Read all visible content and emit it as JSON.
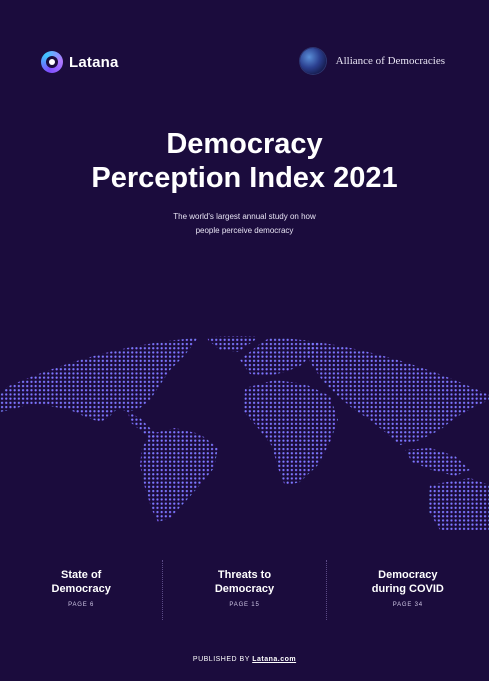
{
  "brands": {
    "latana": {
      "name": "Latana",
      "icon": "latana-logo-icon"
    },
    "alliance": {
      "name": "Alliance of Democracies",
      "icon": "alliance-emblem-icon"
    }
  },
  "cover": {
    "title_line1": "Democracy",
    "title_line2": "Perception Index 2021",
    "subtitle_line1": "The world's largest annual study on how",
    "subtitle_line2": "people perceive democracy"
  },
  "sections": [
    {
      "heading": "State of\nDemocracy",
      "page": "PAGE 6"
    },
    {
      "heading": "Threats to\nDemocracy",
      "page": "PAGE 15"
    },
    {
      "heading": "Democracy\nduring COVID",
      "page": "PAGE 34"
    }
  ],
  "footer": {
    "prefix": "PUBLISHED BY ",
    "link": "Latana.com"
  },
  "colors": {
    "background": "#1b0c3d",
    "map_gradient_start": "#5bb8ff",
    "map_gradient_end": "#8a4dff"
  }
}
